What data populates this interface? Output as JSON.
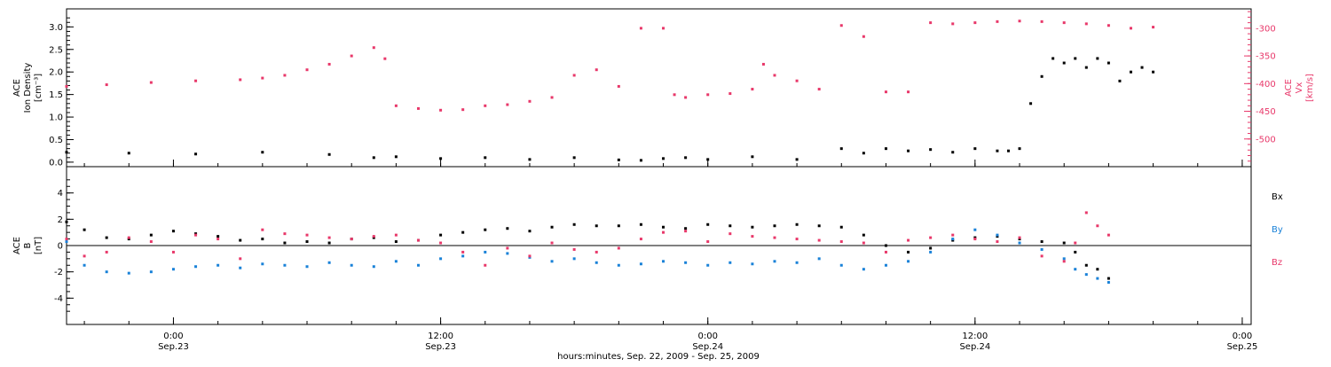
{
  "xlabel": "hours:minutes, Sep. 22, 2009 - Sep. 25, 2009",
  "x_ticks": [
    {
      "hours": 24,
      "time": "0:00",
      "date": "Sep.23"
    },
    {
      "hours": 36,
      "time": "12:00",
      "date": "Sep.23"
    },
    {
      "hours": 48,
      "time": "0:00",
      "date": "Sep.24"
    },
    {
      "hours": 60,
      "time": "12:00",
      "date": "Sep.24"
    },
    {
      "hours": 72,
      "time": "0:00",
      "date": "Sep.25"
    }
  ],
  "colors": {
    "black": "#000000",
    "pink": "#e8386a",
    "blue": "#1a82d8"
  },
  "chart_data": [
    {
      "type": "scatter",
      "panel": "top",
      "x_range_hours": [
        19.2,
        72.4
      ],
      "left_axis": {
        "label_lines": [
          "ACE",
          "Ion Density"
        ],
        "units": "[cm⁻³]",
        "ylim": [
          -0.1,
          3.4
        ],
        "ticks": [
          "0.0",
          "0.5",
          "1.0",
          "1.5",
          "2.0",
          "2.5",
          "3.0"
        ]
      },
      "right_axis": {
        "label_lines": [
          "ACE",
          "Vx"
        ],
        "units": "[km/s]",
        "ylim": [
          -550,
          -265
        ],
        "ticks": [
          "-300",
          "-350",
          "-400",
          "-450",
          "-500"
        ]
      },
      "series": [
        {
          "color": "black",
          "axis": "left",
          "x": [
            19.2,
            22,
            25,
            28,
            31,
            33,
            34,
            36,
            38,
            40,
            42,
            44,
            45,
            46,
            47,
            48,
            50,
            52,
            54,
            55,
            56,
            57,
            58,
            59,
            60,
            61,
            61.5,
            62,
            62.5,
            63,
            63.5,
            64,
            64.5,
            65,
            65.5,
            66,
            66.5,
            67,
            67.5,
            68
          ],
          "y": [
            0.22,
            0.2,
            0.18,
            0.22,
            0.17,
            0.1,
            0.12,
            0.08,
            0.1,
            0.06,
            0.1,
            0.05,
            0.04,
            0.08,
            0.1,
            0.06,
            0.12,
            0.06,
            0.3,
            0.2,
            0.3,
            0.25,
            0.28,
            0.22,
            0.3,
            0.25,
            0.25,
            0.3,
            1.3,
            1.9,
            2.3,
            2.2,
            2.3,
            2.1,
            2.3,
            2.2,
            1.8,
            2.0,
            2.1,
            2.0
          ]
        },
        {
          "color": "pink",
          "axis": "right",
          "x": [
            19.2,
            21,
            23,
            25,
            27,
            28,
            29,
            30,
            31,
            32,
            33,
            33.5,
            34,
            35,
            36,
            37,
            38,
            39,
            40,
            41,
            42,
            43,
            44,
            45,
            46,
            46.5,
            47,
            48,
            49,
            50,
            50.5,
            51,
            52,
            53,
            54,
            55,
            56,
            57,
            58,
            59,
            60,
            61,
            62,
            63,
            64,
            65,
            66,
            67,
            68
          ],
          "y": [
            -405,
            -402,
            -398,
            -395,
            -393,
            -390,
            -385,
            -375,
            -365,
            -350,
            -335,
            -355,
            -440,
            -445,
            -448,
            -447,
            -440,
            -438,
            -432,
            -425,
            -385,
            -375,
            -405,
            -300,
            -300,
            -420,
            -425,
            -420,
            -418,
            -410,
            -365,
            -385,
            -395,
            -410,
            -295,
            -315,
            -415,
            -415,
            -290,
            -292,
            -290,
            -288,
            -287,
            -288,
            -290,
            -292,
            -295,
            -300,
            -298
          ]
        }
      ]
    },
    {
      "type": "scatter",
      "panel": "bottom",
      "x_range_hours": [
        19.2,
        72.4
      ],
      "left_axis": {
        "label_lines": [
          "ACE",
          "B"
        ],
        "units": "[nT]",
        "ylim": [
          -6,
          6
        ],
        "ticks": [
          "4",
          "2",
          "0",
          "-2",
          "-4"
        ]
      },
      "legend": {
        "placement": "right",
        "entries": [
          {
            "label": "Bx",
            "color": "black"
          },
          {
            "label": "By",
            "color": "blue"
          },
          {
            "label": "Bz",
            "color": "pink"
          }
        ]
      },
      "series": [
        {
          "name": "Bx",
          "color": "black",
          "x": [
            19.2,
            20,
            21,
            22,
            23,
            24,
            25,
            26,
            27,
            28,
            29,
            30,
            31,
            32,
            33,
            34,
            35,
            36,
            37,
            38,
            39,
            40,
            41,
            42,
            43,
            44,
            45,
            46,
            47,
            48,
            49,
            50,
            51,
            52,
            53,
            54,
            55,
            56,
            57,
            58,
            59,
            60,
            61,
            62,
            63,
            64,
            64.5,
            65,
            65.5,
            66
          ],
          "y": [
            1.8,
            1.2,
            0.6,
            0.5,
            0.8,
            1.1,
            0.9,
            0.7,
            0.4,
            0.5,
            0.2,
            0.3,
            0.2,
            0.5,
            0.6,
            0.3,
            0.4,
            0.8,
            1.0,
            1.2,
            1.3,
            1.1,
            1.4,
            1.6,
            1.5,
            1.5,
            1.6,
            1.4,
            1.3,
            1.6,
            1.5,
            1.4,
            1.5,
            1.6,
            1.5,
            1.4,
            0.8,
            0.0,
            -0.5,
            -0.2,
            0.4,
            0.6,
            0.7,
            0.5,
            0.3,
            0.2,
            -0.5,
            -1.5,
            -1.8,
            -2.5
          ]
        },
        {
          "name": "By",
          "color": "blue",
          "x": [
            19.2,
            20,
            21,
            22,
            23,
            24,
            25,
            26,
            27,
            28,
            29,
            30,
            31,
            32,
            33,
            34,
            35,
            36,
            37,
            38,
            39,
            40,
            41,
            42,
            43,
            44,
            45,
            46,
            47,
            48,
            49,
            50,
            51,
            52,
            53,
            54,
            55,
            56,
            57,
            58,
            59,
            60,
            61,
            62,
            63,
            64,
            64.5,
            65,
            65.5,
            66
          ],
          "y": [
            0.3,
            -1.5,
            -2.0,
            -2.1,
            -2.0,
            -1.8,
            -1.6,
            -1.5,
            -1.7,
            -1.4,
            -1.5,
            -1.6,
            -1.3,
            -1.5,
            -1.6,
            -1.2,
            -1.5,
            -1.0,
            -0.8,
            -0.5,
            -0.6,
            -0.9,
            -1.2,
            -1.0,
            -1.3,
            -1.5,
            -1.4,
            -1.2,
            -1.3,
            -1.5,
            -1.3,
            -1.4,
            -1.2,
            -1.3,
            -1.0,
            -1.5,
            -1.8,
            -1.5,
            -1.2,
            -0.5,
            0.5,
            1.2,
            0.8,
            0.2,
            -0.3,
            -1.0,
            -1.8,
            -2.2,
            -2.5,
            -2.8
          ]
        },
        {
          "name": "Bz",
          "color": "pink",
          "x": [
            19.2,
            20,
            21,
            22,
            23,
            24,
            25,
            26,
            27,
            28,
            29,
            30,
            31,
            32,
            33,
            34,
            35,
            36,
            37,
            38,
            39,
            40,
            41,
            42,
            43,
            44,
            45,
            46,
            47,
            48,
            49,
            50,
            51,
            52,
            53,
            54,
            55,
            56,
            57,
            58,
            59,
            60,
            61,
            62,
            63,
            64,
            64.5,
            65,
            65.5,
            66
          ],
          "y": [
            0.5,
            -0.8,
            -0.5,
            0.6,
            0.3,
            -0.5,
            0.8,
            0.5,
            -1.0,
            1.2,
            0.9,
            0.8,
            0.6,
            0.5,
            0.7,
            0.8,
            0.4,
            0.2,
            -0.5,
            -1.5,
            -0.2,
            -0.8,
            0.2,
            -0.3,
            -0.5,
            -0.2,
            0.5,
            1.0,
            1.1,
            0.3,
            0.9,
            0.7,
            0.6,
            0.5,
            0.4,
            0.3,
            0.2,
            -0.5,
            0.4,
            0.6,
            0.8,
            0.5,
            0.3,
            0.6,
            -0.8,
            -1.2,
            0.2,
            2.5,
            1.5,
            0.8
          ]
        }
      ]
    }
  ]
}
